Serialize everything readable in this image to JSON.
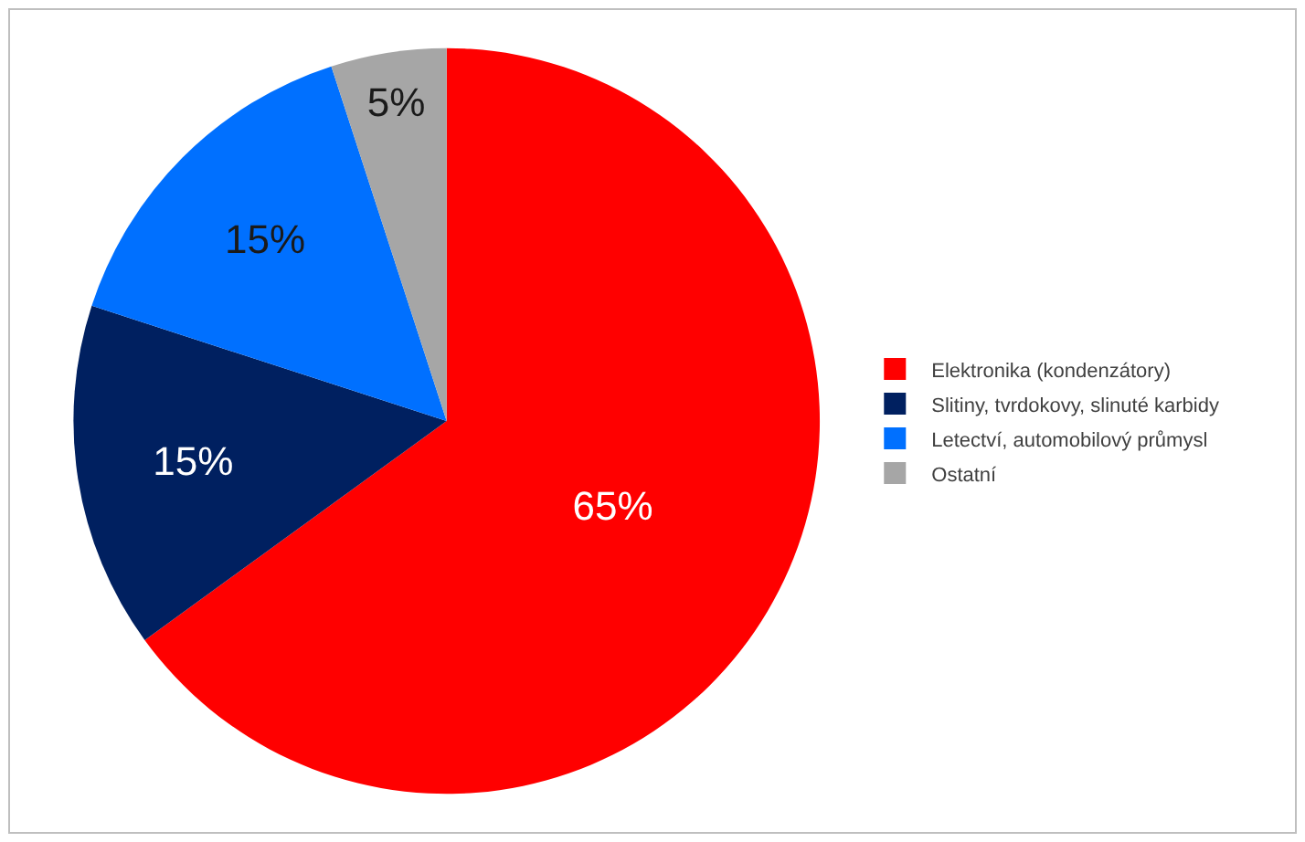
{
  "chart_data": {
    "type": "pie",
    "categories": [
      "Elektronika (kondenzátory)",
      "Slitiny, tvrdokovy, slinuté karbidy",
      "Letectví, automobilový průmysl",
      "Ostatní"
    ],
    "values": [
      65,
      15,
      15,
      5
    ],
    "colors": [
      "#ff0000",
      "#002060",
      "#0070ff",
      "#a6a6a6"
    ],
    "value_labels": [
      "65%",
      "15%",
      "15%",
      "5%"
    ],
    "legend": "right"
  }
}
